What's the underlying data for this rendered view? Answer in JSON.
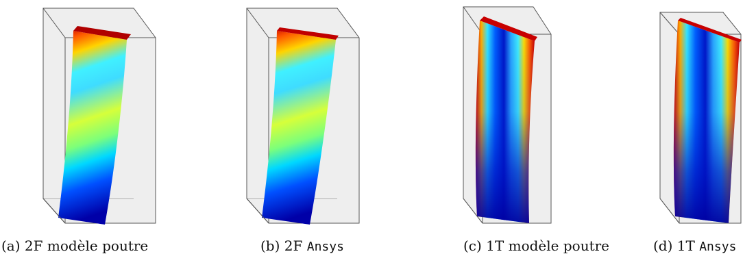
{
  "figure": {
    "panels": [
      {
        "id": "a",
        "label": "(a)",
        "mode": "2F",
        "method_text": "modèle poutre",
        "method_mono": ""
      },
      {
        "id": "b",
        "label": "(b)",
        "mode": "2F",
        "method_text": "",
        "method_mono": "Ansys"
      },
      {
        "id": "c",
        "label": "(c)",
        "mode": "1T",
        "method_text": "modèle poutre",
        "method_mono": ""
      },
      {
        "id": "d",
        "label": "(d)",
        "mode": "1T",
        "method_text": "",
        "method_mono": "Ansys"
      }
    ],
    "colors": {
      "box_face": "#eeeeee",
      "box_edge": "#555555",
      "jet_red": "#d40000",
      "jet_yellow": "#e6ff3c",
      "jet_cyan": "#33ddff",
      "jet_blue": "#0000b4"
    }
  }
}
